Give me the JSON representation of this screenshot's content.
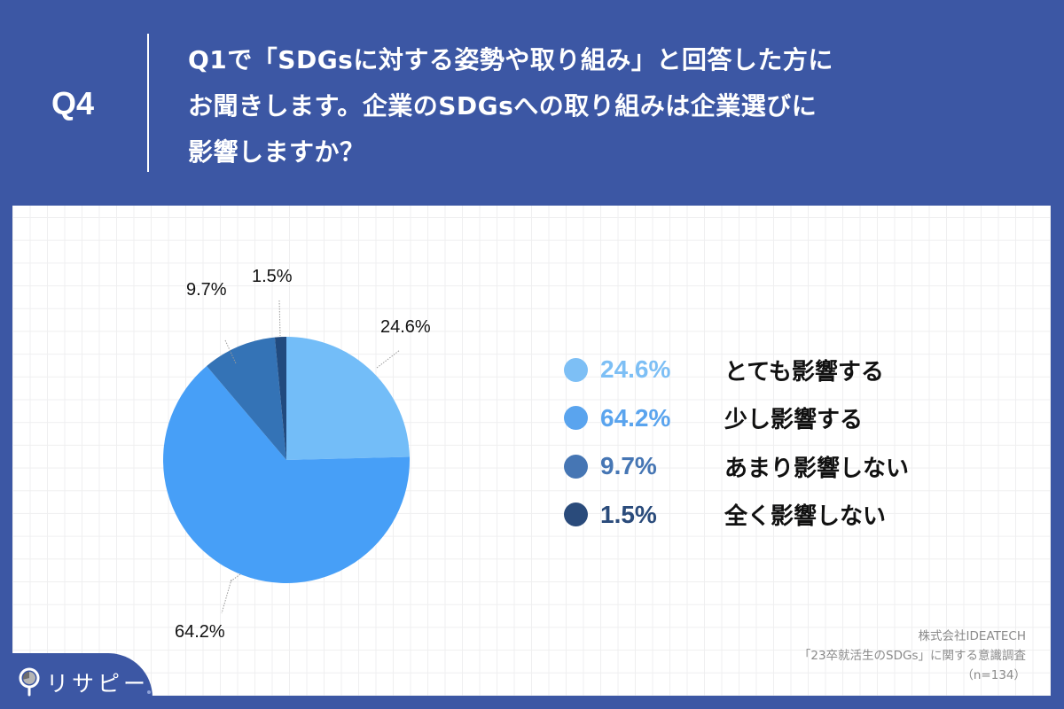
{
  "header": {
    "q_number": "Q4",
    "question_lines": [
      "Q1で「SDGsに対する姿勢や取り組み」と回答した方に",
      "お聞きします。企業のSDGsへの取り組みは企業選びに",
      "影響しますか？"
    ]
  },
  "colors": {
    "background": "#3c57a4",
    "panel": "#ffffff",
    "grid": "#efeff0"
  },
  "chart_data": {
    "type": "pie",
    "title": "Q1で「SDGsに対する姿勢や取り組み」と回答した方にお聞きします。企業のSDGsへの取り組みは企業選びに影響しますか？",
    "start_angle_deg": 0,
    "direction": "clockwise",
    "slices": [
      {
        "label": "とても影響する",
        "value": 24.6,
        "display": "24.6%",
        "color": "#73bdf8",
        "legend_pct_color": "#7dbff5"
      },
      {
        "label": "少し影響する",
        "value": 64.2,
        "display": "64.2%",
        "color": "#479ff7",
        "legend_pct_color": "#5aa4ee"
      },
      {
        "label": "あまり影響しない",
        "value": 9.7,
        "display": "9.7%",
        "color": "#3473b6",
        "legend_pct_color": "#4676b4"
      },
      {
        "label": "全く影響しない",
        "value": 1.5,
        "display": "1.5%",
        "color": "#214a7e",
        "legend_pct_color": "#2a4b7b"
      }
    ],
    "legend_position": "right",
    "n": 134
  },
  "pie_labels": [
    {
      "text": "24.6%"
    },
    {
      "text": "64.2%"
    },
    {
      "text": "9.7%"
    },
    {
      "text": "1.5%"
    }
  ],
  "legend": [
    {
      "pct": "24.6%",
      "label": "とても影響する"
    },
    {
      "pct": "64.2%",
      "label": "少し影響する"
    },
    {
      "pct": "9.7%",
      "label": "あまり影響しない"
    },
    {
      "pct": "1.5%",
      "label": "全く影響しない"
    }
  ],
  "source": {
    "company": "株式会社IDEATECH",
    "survey": "「23卒就活生のSDGs」に関する意識調査",
    "sample": "（n=134）"
  },
  "logo": {
    "text": "リサピー",
    "icon": "pin-pie-icon"
  }
}
